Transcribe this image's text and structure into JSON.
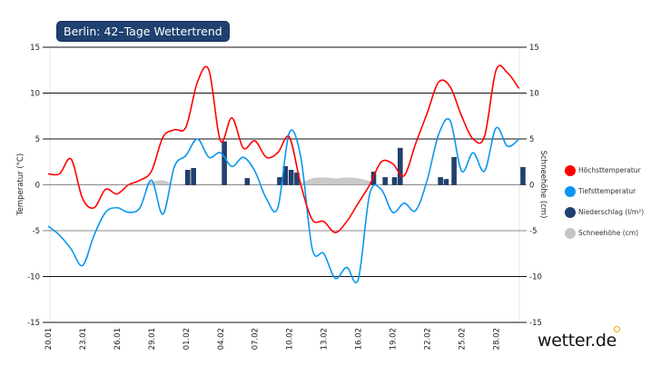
{
  "title": "Berlin: 42–Tage Wettertrend",
  "logo": "wetter.de",
  "colors": {
    "max": "#ff0000",
    "min": "#0a96f0",
    "precip": "#1f4170",
    "snow": "#c4c4c4",
    "title_bg": "#1f4170",
    "logo_accent": "#f5a800"
  },
  "chart_data": {
    "type": "line",
    "title": "Berlin: 42–Tage Wettertrend",
    "ylabel": "Temperatur (°C)",
    "y2label": "Schneehöhe (cm)",
    "ylim": [
      -15,
      15
    ],
    "y2lim": [
      -15,
      15
    ],
    "yticks": [
      -15,
      -10,
      -5,
      0,
      5,
      10,
      15
    ],
    "grid": true,
    "legend_placement": "right",
    "dates": [
      "20.01",
      "21.01",
      "22.01",
      "23.01",
      "24.01",
      "25.01",
      "26.01",
      "27.01",
      "28.01",
      "29.01",
      "30.01",
      "31.01",
      "01.02",
      "02.02",
      "03.02",
      "04.02",
      "05.02",
      "06.02",
      "07.02",
      "08.02",
      "09.02",
      "10.02",
      "11.02",
      "12.02",
      "13.02",
      "14.02",
      "15.02",
      "16.02",
      "17.02",
      "18.02",
      "19.02",
      "20.02",
      "21.02",
      "22.02",
      "23.02",
      "24.02",
      "25.02",
      "26.02",
      "27.02",
      "28.02",
      "29.02",
      "01.03"
    ],
    "xtick_labels": [
      "20.01",
      "23.01",
      "26.01",
      "29.01",
      "01.02",
      "04.02",
      "07.02",
      "10.02",
      "13.02",
      "16.02",
      "19.02",
      "22.02",
      "25.02",
      "28.02"
    ],
    "series": [
      {
        "name": "Höchsttemperatur",
        "color": "#ff0000",
        "values": [
          1.2,
          1.2,
          2.8,
          -1.5,
          -2.5,
          -0.5,
          -1.0,
          0,
          0.5,
          1.5,
          5.2,
          6.0,
          6.3,
          11.2,
          12.5,
          4.8,
          7.3,
          4.0,
          4.8,
          3.0,
          3.5,
          5.2,
          0,
          -3.8,
          -4.0,
          -5.2,
          -4.0,
          -2.0,
          0,
          2.5,
          2.3,
          1.0,
          4.5,
          7.8,
          11.2,
          10.7,
          7.5,
          5.0,
          5.3,
          12.5,
          12.2,
          10.5
        ]
      },
      {
        "name": "Tiefsttemperatur",
        "color": "#0a96f0",
        "values": [
          -4.5,
          -5.5,
          -7.0,
          -8.8,
          -5.5,
          -3.0,
          -2.5,
          -3.0,
          -2.5,
          0.5,
          -3.2,
          2.0,
          3.2,
          5.0,
          3.0,
          3.5,
          2.0,
          3.0,
          1.5,
          -1.5,
          -2.5,
          5.7,
          3.0,
          -7.0,
          -7.5,
          -10.2,
          -9.0,
          -10.3,
          -1.0,
          -0.5,
          -3.0,
          -2.0,
          -2.8,
          0.5,
          5.5,
          7.0,
          1.5,
          3.5,
          1.5,
          6.2,
          4.2,
          5.0
        ]
      },
      {
        "name": "Schneehöhe (cm)",
        "color": "#c4c4c4",
        "values": [
          0,
          0,
          0,
          0,
          0,
          0,
          0,
          0,
          0,
          0.3,
          0.5,
          0,
          0,
          0,
          0,
          0,
          0,
          0,
          0,
          0,
          0,
          0,
          0.2,
          0.7,
          0.8,
          0.7,
          0.8,
          0.7,
          0.4,
          0,
          0,
          0,
          0,
          0,
          0,
          0,
          0,
          0,
          0,
          0,
          0,
          0
        ]
      }
    ],
    "precipitation": {
      "name": "Niederschlag (l/m²)",
      "color": "#1f4170",
      "bars": [
        {
          "date": "01.02",
          "values": [
            1.6,
            1.8
          ]
        },
        {
          "date": "04.02",
          "values": [
            4.7
          ]
        },
        {
          "date": "06.02",
          "values": [
            0.7
          ]
        },
        {
          "date": "09.02",
          "values": [
            0.8,
            2.0
          ]
        },
        {
          "date": "10.02",
          "values": [
            1.6,
            1.3
          ]
        },
        {
          "date": "17.02",
          "values": [
            1.4
          ]
        },
        {
          "date": "18.02",
          "values": [
            0.8
          ]
        },
        {
          "date": "19.02",
          "values": [
            0.8,
            4.0
          ]
        },
        {
          "date": "23.02",
          "values": [
            0.8,
            0.6
          ]
        },
        {
          "date": "24.02",
          "values": [
            3.0
          ]
        },
        {
          "date": "01.03",
          "values": [
            1.9
          ]
        }
      ]
    },
    "legend": [
      "Höchsttemperatur",
      "Tiefsttemperatur",
      "Niederschlag (l/m²)",
      "Schneehöhe (cm)"
    ]
  }
}
